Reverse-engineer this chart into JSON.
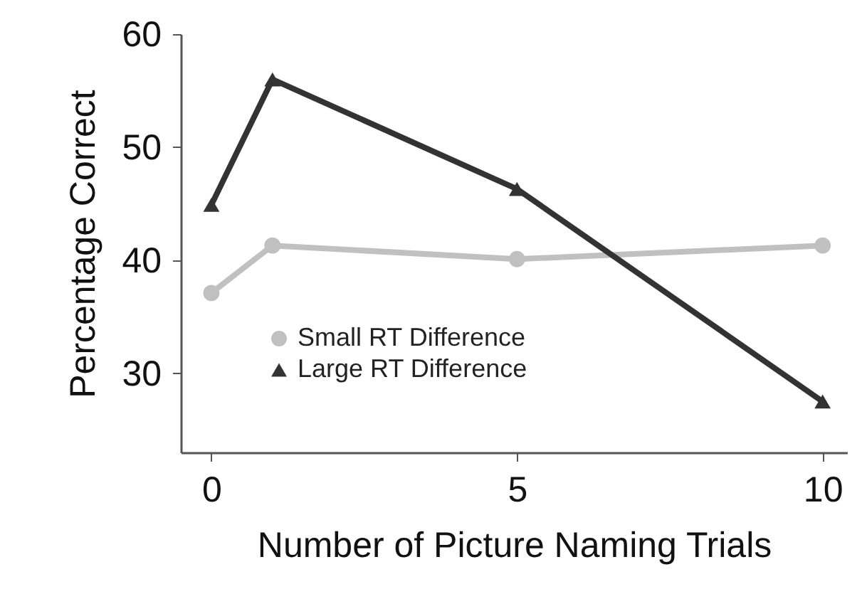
{
  "chart_data": {
    "type": "line",
    "xlabel": "Number of Picture Naming Trials",
    "ylabel": "Percentage Correct",
    "x": [
      0,
      1,
      5,
      10
    ],
    "series": [
      {
        "name": "Small RT Difference",
        "color": "#c0c0c0",
        "marker": "circle",
        "values": [
          37.1,
          41.3,
          40.1,
          41.3
        ]
      },
      {
        "name": "Large RT Difference",
        "color": "#333333",
        "marker": "triangle",
        "values": [
          44.9,
          56.0,
          46.3,
          27.5
        ]
      }
    ],
    "xlim": [
      -0.5,
      10.4
    ],
    "xticks": [
      0,
      5,
      10
    ],
    "ylim": [
      23,
      60
    ],
    "yticks": [
      30,
      40,
      50,
      60
    ],
    "grid": false,
    "legend": "bottom"
  }
}
